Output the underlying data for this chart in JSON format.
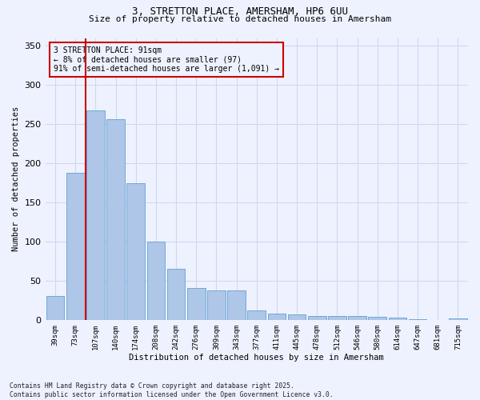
{
  "title1": "3, STRETTON PLACE, AMERSHAM, HP6 6UU",
  "title2": "Size of property relative to detached houses in Amersham",
  "xlabel": "Distribution of detached houses by size in Amersham",
  "ylabel": "Number of detached properties",
  "categories": [
    "39sqm",
    "73sqm",
    "107sqm",
    "140sqm",
    "174sqm",
    "208sqm",
    "242sqm",
    "276sqm",
    "309sqm",
    "343sqm",
    "377sqm",
    "411sqm",
    "445sqm",
    "478sqm",
    "512sqm",
    "546sqm",
    "580sqm",
    "614sqm",
    "647sqm",
    "681sqm",
    "715sqm"
  ],
  "values": [
    30,
    188,
    268,
    256,
    175,
    100,
    65,
    41,
    38,
    38,
    12,
    8,
    7,
    5,
    5,
    5,
    4,
    3,
    1,
    0,
    2
  ],
  "bar_color": "#aec6e8",
  "bar_edgecolor": "#6fa8d6",
  "vline_color": "#cc0000",
  "annotation_text": "3 STRETTON PLACE: 91sqm\n← 8% of detached houses are smaller (97)\n91% of semi-detached houses are larger (1,091) →",
  "annotation_box_edgecolor": "#cc0000",
  "background_color": "#eef2ff",
  "grid_color": "#d0d8f0",
  "ylim": [
    0,
    360
  ],
  "footnote": "Contains HM Land Registry data © Crown copyright and database right 2025.\nContains public sector information licensed under the Open Government Licence v3.0."
}
